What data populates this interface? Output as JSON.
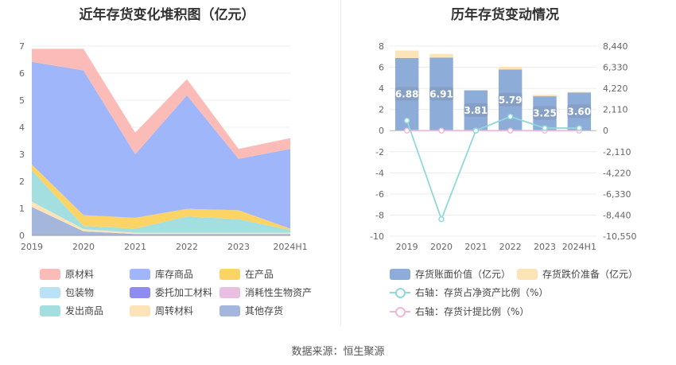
{
  "footer": {
    "source": "数据来源：恒生聚源"
  },
  "chart_data": [
    {
      "type": "area",
      "stacked": true,
      "title": "近年存货变化堆积图（亿元）",
      "categories": [
        "2019",
        "2020",
        "2021",
        "2022",
        "2023",
        "2024H1"
      ],
      "ylim": [
        0,
        7
      ],
      "yticks": [
        "0",
        "1",
        "2",
        "3",
        "4",
        "5",
        "6",
        "7"
      ],
      "grid": true,
      "legend_position": "bottom",
      "series": [
        {
          "name": "其他存货",
          "color": "#a4b6dc",
          "values": [
            1.05,
            0.15,
            0.05,
            0.05,
            0.05,
            0.05
          ]
        },
        {
          "name": "周转材料",
          "color": "#fde3b8",
          "values": [
            0.2,
            0.08,
            0.05,
            0.05,
            0.05,
            0.05
          ]
        },
        {
          "name": "发出商品",
          "color": "#a3dfe0",
          "values": [
            1.15,
            0.12,
            0.15,
            0.6,
            0.5,
            0.1
          ]
        },
        {
          "name": "消耗性生物资产",
          "color": "#e8bfe0",
          "values": [
            0,
            0,
            0,
            0,
            0,
            0
          ]
        },
        {
          "name": "委托加工材料",
          "color": "#8e8cf0",
          "values": [
            0,
            0,
            0,
            0,
            0,
            0
          ]
        },
        {
          "name": "包装物",
          "color": "#b9e2f6",
          "values": [
            0,
            0,
            0,
            0,
            0,
            0
          ]
        },
        {
          "name": "在产品",
          "color": "#fcd466",
          "values": [
            0.22,
            0.4,
            0.4,
            0.28,
            0.33,
            0.05
          ]
        },
        {
          "name": "库存商品",
          "color": "#a0b6fa",
          "values": [
            3.8,
            5.35,
            2.35,
            4.2,
            1.9,
            2.95
          ]
        },
        {
          "name": "原材料",
          "color": "#fbbcb7",
          "values": [
            0.48,
            0.8,
            0.8,
            0.6,
            0.37,
            0.4
          ]
        }
      ],
      "legend_order": [
        "原材料",
        "库存商品",
        "在产品",
        "包装物",
        "委托加工材料",
        "消耗性生物资产",
        "发出商品",
        "周转材料",
        "其他存货"
      ]
    },
    {
      "type": "bar",
      "title": "历年存货变动情况",
      "categories": [
        "2019",
        "2020",
        "2021",
        "2022",
        "2023",
        "2024H1"
      ],
      "ylim_left": [
        -10,
        8
      ],
      "yticks_left": [
        "-10",
        "-8",
        "-6",
        "-4",
        "-2",
        "0",
        "2",
        "4",
        "6",
        "8"
      ],
      "ylim_right": [
        -10550,
        8440
      ],
      "yticks_right": [
        "-10,550",
        "-8,440",
        "-6,330",
        "-4,220",
        "-2,110",
        "0",
        "2,110",
        "4,220",
        "6,330",
        "8,440"
      ],
      "grid": true,
      "legend_position": "bottom",
      "series": [
        {
          "name": "存货账面价值（亿元）",
          "kind": "bar",
          "color": "#8eacd8",
          "values": [
            6.88,
            6.91,
            3.81,
            5.79,
            3.25,
            3.6
          ],
          "labels": [
            "6.88",
            "6.91",
            "3.81",
            "5.79",
            "3.25",
            "3.60"
          ]
        },
        {
          "name": "存货跌价准备（亿元）",
          "kind": "bar-stack",
          "color": "#fde3b8",
          "values": [
            0.7,
            0.35,
            0.05,
            0.25,
            0.15,
            0.08
          ]
        },
        {
          "name": "右轴：存货占净资产比例（%）",
          "kind": "line",
          "color": "#8fd8dc",
          "values": [
            1000,
            -8850,
            0,
            1400,
            250,
            250
          ]
        },
        {
          "name": "右轴：存货计提比例（%）",
          "kind": "line",
          "color": "#f0b8d8",
          "values": [
            0,
            0,
            0,
            0,
            0,
            0
          ]
        }
      ]
    }
  ]
}
